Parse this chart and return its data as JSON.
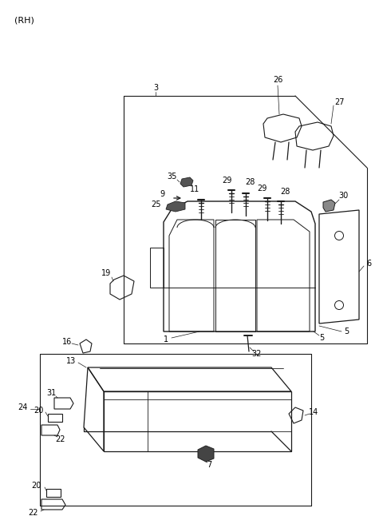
{
  "title": "(RH)",
  "bg": "#ffffff",
  "lc": "#1a1a1a",
  "figsize": [
    4.8,
    6.56
  ],
  "dpi": 100,
  "xlim": [
    0,
    480
  ],
  "ylim": [
    0,
    656
  ]
}
